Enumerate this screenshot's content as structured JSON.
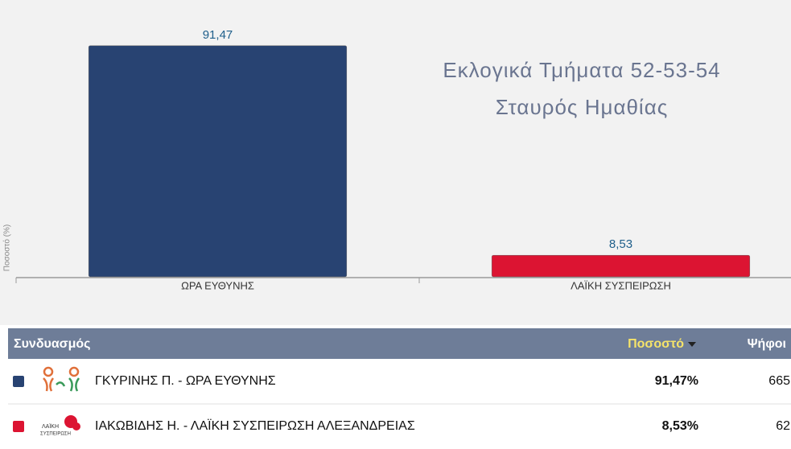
{
  "chart_data": {
    "type": "bar",
    "title": "Εκλογικά Τμήματα 52-53-54",
    "subtitle": "Σταυρός Ημαθίας",
    "y_label": "Ποσοστό (%)",
    "categories": [
      "ΩΡΑ ΕΥΘΥΝΗΣ",
      "ΛΑΪΚΗ ΣΥΣΠΕΙΡΩΣΗ"
    ],
    "values": [
      91.47,
      8.53
    ],
    "value_labels": [
      "91,47",
      "8,53"
    ],
    "colors": [
      "#284372",
      "#dc1432"
    ],
    "ylim": [
      0,
      100
    ]
  },
  "table": {
    "header": [
      "Συνδυασμός",
      "Ποσοστό",
      "Ψήφοι"
    ],
    "rows": [
      [
        "ΓΚΥΡΙΝΗΣ Π. - ΩΡΑ ΕΥΘΥΝΗΣ",
        "91,47%",
        "665"
      ],
      [
        "ΙΑΚΩΒΙΔΗΣ Η. - ΛΑΪΚΗ ΣΥΣΠΕΙΡΩΣΗ ΑΛΕΞΑΝΔΡΕΙΑΣ",
        "8,53%",
        "62"
      ]
    ],
    "logo_text": [
      "ΛΑΪΚΗ",
      "ΣΥΣΠΕΙΡΩΣΗ"
    ]
  }
}
